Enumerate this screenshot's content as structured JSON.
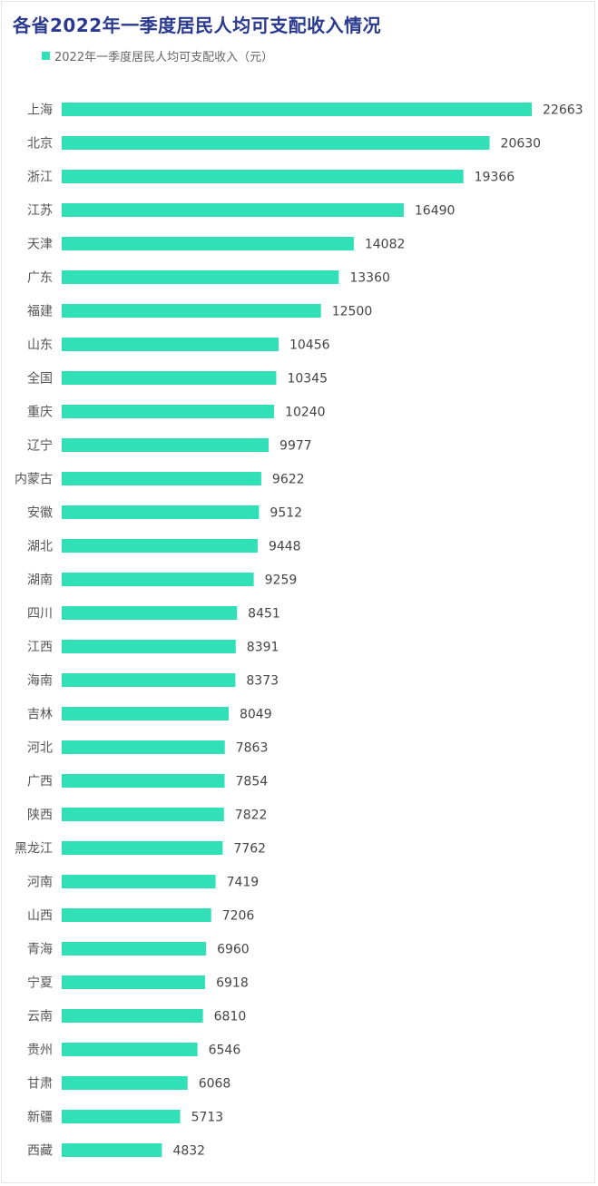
{
  "chart_data": {
    "type": "bar",
    "orientation": "horizontal",
    "title": "各省2022年一季度居民人均可支配收入情况",
    "series": [
      {
        "name": "2022年一季度居民人均可支配收入（元）",
        "color": "#31e0b6"
      }
    ],
    "categories": [
      "上海",
      "北京",
      "浙江",
      "江苏",
      "天津",
      "广东",
      "福建",
      "山东",
      "全国",
      "重庆",
      "辽宁",
      "内蒙古",
      "安徽",
      "湖北",
      "湖南",
      "四川",
      "江西",
      "海南",
      "吉林",
      "河北",
      "广西",
      "陕西",
      "黑龙江",
      "河南",
      "山西",
      "青海",
      "宁夏",
      "云南",
      "贵州",
      "甘肃",
      "新疆",
      "西藏"
    ],
    "values": [
      22663,
      20630,
      19366,
      16490,
      14082,
      13360,
      12500,
      10456,
      10345,
      10240,
      9977,
      9622,
      9512,
      9448,
      9259,
      8451,
      8391,
      8373,
      8049,
      7863,
      7854,
      7822,
      7762,
      7419,
      7206,
      6960,
      6918,
      6810,
      6546,
      6068,
      5713,
      4832
    ],
    "xlim": [
      0,
      22663
    ],
    "grid": false,
    "legend_position": "top-left"
  }
}
